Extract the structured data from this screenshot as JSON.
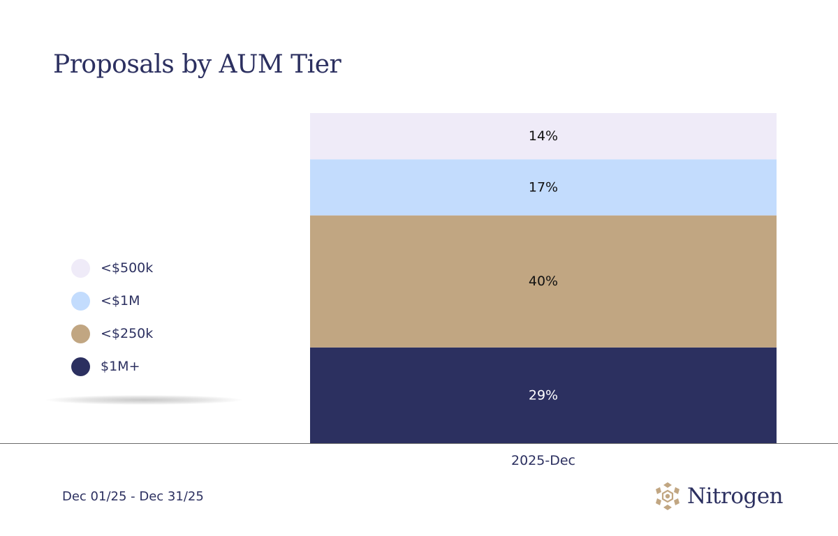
{
  "header": {
    "title": "Proposals by AUM Tier"
  },
  "legend": {
    "items": [
      {
        "label": "<$500k",
        "color": "#efebf8"
      },
      {
        "label": "<$1M",
        "color": "#c3dcfd"
      },
      {
        "label": "<$250k",
        "color": "#c1a682"
      },
      {
        "label": "$1M+",
        "color": "#2c3060"
      }
    ]
  },
  "chart_data": {
    "type": "bar",
    "stacked": true,
    "normalized": true,
    "categories": [
      "2025-Dec"
    ],
    "series": [
      {
        "name": "$1M+",
        "values": [
          29
        ],
        "label": "29%",
        "color": "#2c3060",
        "label_color": "#ffffff"
      },
      {
        "name": "<$250k",
        "values": [
          40
        ],
        "label": "40%",
        "color": "#c1a682",
        "label_color": "#111111"
      },
      {
        "name": "<$1M",
        "values": [
          17
        ],
        "label": "17%",
        "color": "#c3dcfd",
        "label_color": "#111111"
      },
      {
        "name": "<$500k",
        "values": [
          14
        ],
        "label": "14%",
        "color": "#efebf8",
        "label_color": "#111111"
      }
    ],
    "ylim": [
      0,
      100
    ],
    "grid": false,
    "legend_position": "left"
  },
  "footer": {
    "date_range": "Dec 01/25 - Dec 31/25",
    "brand_name": "Nitrogen",
    "brand_icon": "nitrogen-logo-icon",
    "brand_color": "#c1a682"
  }
}
